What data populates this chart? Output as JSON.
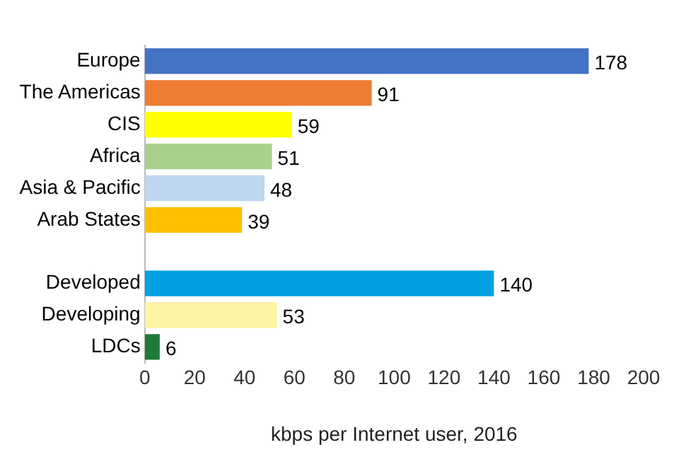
{
  "chart_data": {
    "type": "bar",
    "orientation": "horizontal",
    "xlabel": "kbps per Internet user, 2016",
    "categories": [
      "Europe",
      "The Americas",
      "CIS",
      "Africa",
      "Asia & Pacific",
      "Arab States",
      null,
      "Developed",
      "Developing",
      "LDCs"
    ],
    "values": [
      178,
      91,
      59,
      51,
      48,
      39,
      null,
      140,
      53,
      6
    ],
    "colors": [
      "#4472c4",
      "#ed7d31",
      "#ffff00",
      "#a9d18e",
      "#bdd7ee",
      "#ffc000",
      null,
      "#00a0e3",
      "#fff2a0",
      "#1e7b3b"
    ],
    "xlim": [
      0,
      200
    ],
    "xticks": [
      0,
      20,
      40,
      60,
      80,
      100,
      120,
      140,
      160,
      180,
      200
    ],
    "data_labels": true,
    "grid": false,
    "legend": false
  }
}
